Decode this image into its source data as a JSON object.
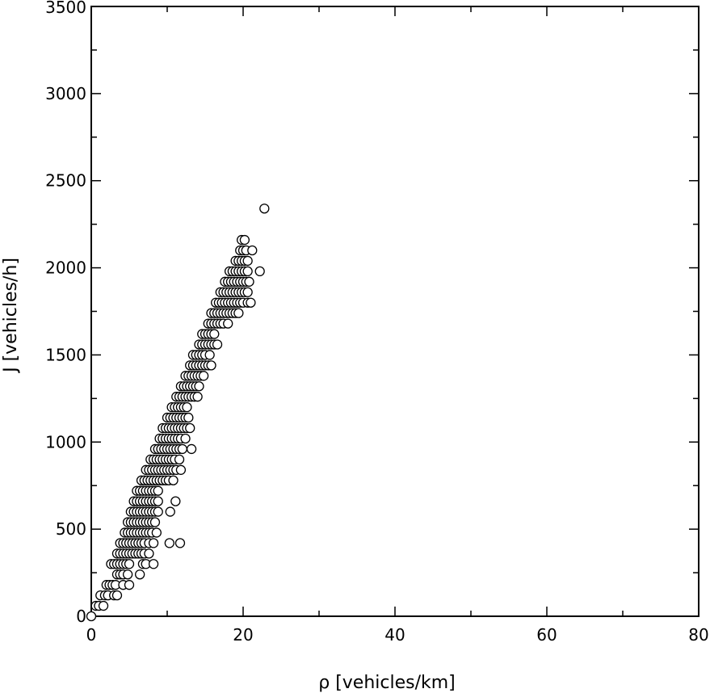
{
  "chart_data": {
    "type": "scatter",
    "title": "",
    "xlabel": "ρ [vehicles/km]",
    "ylabel": "J [vehicles/h]",
    "xlim": [
      0,
      80
    ],
    "ylim": [
      0,
      3500
    ],
    "xticks": [
      0,
      20,
      40,
      60,
      80
    ],
    "xtick_labels": [
      "0",
      "20",
      "40",
      "60",
      "80"
    ],
    "yticks": [
      0,
      500,
      1000,
      1500,
      2000,
      2500,
      3000,
      3500
    ],
    "ytick_labels": [
      "0",
      "500",
      "1000",
      "1500",
      "2000",
      "2500",
      "3000",
      "3500"
    ],
    "grid": false,
    "marker": "open-circle",
    "series": [
      {
        "points": [
          [
            0,
            0
          ],
          [
            0.6,
            60
          ],
          [
            1.0,
            60
          ],
          [
            1.2,
            120
          ],
          [
            1.6,
            60
          ],
          [
            1.8,
            120
          ],
          [
            2.2,
            120
          ],
          [
            2.0,
            180
          ],
          [
            2.4,
            180
          ],
          [
            2.8,
            180
          ],
          [
            3.0,
            120
          ],
          [
            3.2,
            180
          ],
          [
            3.4,
            120
          ],
          [
            2.6,
            300
          ],
          [
            3.0,
            300
          ],
          [
            3.4,
            300
          ],
          [
            3.8,
            300
          ],
          [
            4.2,
            300
          ],
          [
            4.6,
            300
          ],
          [
            5.0,
            300
          ],
          [
            3.4,
            240
          ],
          [
            3.8,
            240
          ],
          [
            4.2,
            240
          ],
          [
            4.8,
            240
          ],
          [
            4.2,
            180
          ],
          [
            5.0,
            180
          ],
          [
            6.4,
            240
          ],
          [
            3.4,
            360
          ],
          [
            3.8,
            360
          ],
          [
            4.2,
            360
          ],
          [
            4.6,
            360
          ],
          [
            5.0,
            360
          ],
          [
            5.4,
            360
          ],
          [
            5.8,
            360
          ],
          [
            6.2,
            360
          ],
          [
            6.6,
            360
          ],
          [
            7.0,
            360
          ],
          [
            7.6,
            360
          ],
          [
            3.8,
            420
          ],
          [
            4.2,
            420
          ],
          [
            4.6,
            420
          ],
          [
            5.0,
            420
          ],
          [
            5.4,
            420
          ],
          [
            5.8,
            420
          ],
          [
            6.2,
            420
          ],
          [
            6.6,
            420
          ],
          [
            7.0,
            420
          ],
          [
            7.6,
            420
          ],
          [
            8.2,
            420
          ],
          [
            10.3,
            420
          ],
          [
            11.7,
            420
          ],
          [
            6.8,
            300
          ],
          [
            7.2,
            300
          ],
          [
            8.2,
            300
          ],
          [
            4.4,
            480
          ],
          [
            4.8,
            480
          ],
          [
            5.2,
            480
          ],
          [
            5.6,
            480
          ],
          [
            6.0,
            480
          ],
          [
            6.4,
            480
          ],
          [
            6.8,
            480
          ],
          [
            7.2,
            480
          ],
          [
            7.6,
            480
          ],
          [
            8.0,
            480
          ],
          [
            8.6,
            480
          ],
          [
            4.8,
            540
          ],
          [
            5.2,
            540
          ],
          [
            5.6,
            540
          ],
          [
            6.0,
            540
          ],
          [
            6.4,
            540
          ],
          [
            6.8,
            540
          ],
          [
            7.2,
            540
          ],
          [
            7.6,
            540
          ],
          [
            8.0,
            540
          ],
          [
            8.4,
            540
          ],
          [
            5.2,
            600
          ],
          [
            5.6,
            600
          ],
          [
            6.0,
            600
          ],
          [
            6.4,
            600
          ],
          [
            6.8,
            600
          ],
          [
            7.2,
            600
          ],
          [
            7.6,
            600
          ],
          [
            8.0,
            600
          ],
          [
            8.4,
            600
          ],
          [
            8.8,
            600
          ],
          [
            10.4,
            600
          ],
          [
            5.6,
            660
          ],
          [
            6.0,
            660
          ],
          [
            6.4,
            660
          ],
          [
            6.8,
            660
          ],
          [
            7.2,
            660
          ],
          [
            7.6,
            660
          ],
          [
            8.0,
            660
          ],
          [
            8.4,
            660
          ],
          [
            8.8,
            660
          ],
          [
            11.1,
            660
          ],
          [
            6.0,
            720
          ],
          [
            6.4,
            720
          ],
          [
            6.8,
            720
          ],
          [
            7.2,
            720
          ],
          [
            7.6,
            720
          ],
          [
            8.0,
            720
          ],
          [
            8.4,
            720
          ],
          [
            8.8,
            720
          ],
          [
            6.6,
            780
          ],
          [
            7.0,
            780
          ],
          [
            7.4,
            780
          ],
          [
            7.8,
            780
          ],
          [
            8.2,
            780
          ],
          [
            8.6,
            780
          ],
          [
            9.0,
            780
          ],
          [
            9.4,
            780
          ],
          [
            9.8,
            780
          ],
          [
            10.2,
            780
          ],
          [
            10.8,
            780
          ],
          [
            7.2,
            840
          ],
          [
            7.6,
            840
          ],
          [
            8.0,
            840
          ],
          [
            8.4,
            840
          ],
          [
            8.8,
            840
          ],
          [
            9.2,
            840
          ],
          [
            9.6,
            840
          ],
          [
            10.0,
            840
          ],
          [
            10.4,
            840
          ],
          [
            10.8,
            840
          ],
          [
            11.2,
            840
          ],
          [
            11.8,
            840
          ],
          [
            7.8,
            900
          ],
          [
            8.2,
            900
          ],
          [
            8.6,
            900
          ],
          [
            9.0,
            900
          ],
          [
            9.4,
            900
          ],
          [
            9.8,
            900
          ],
          [
            10.2,
            900
          ],
          [
            10.6,
            900
          ],
          [
            11.0,
            900
          ],
          [
            11.6,
            900
          ],
          [
            8.4,
            960
          ],
          [
            8.8,
            960
          ],
          [
            9.2,
            960
          ],
          [
            9.6,
            960
          ],
          [
            10.0,
            960
          ],
          [
            10.4,
            960
          ],
          [
            10.8,
            960
          ],
          [
            11.2,
            960
          ],
          [
            11.6,
            960
          ],
          [
            12.0,
            960
          ],
          [
            13.2,
            960
          ],
          [
            9.0,
            1020
          ],
          [
            9.4,
            1020
          ],
          [
            9.8,
            1020
          ],
          [
            10.2,
            1020
          ],
          [
            10.6,
            1020
          ],
          [
            11.0,
            1020
          ],
          [
            11.4,
            1020
          ],
          [
            11.8,
            1020
          ],
          [
            12.4,
            1020
          ],
          [
            9.4,
            1080
          ],
          [
            9.8,
            1080
          ],
          [
            10.2,
            1080
          ],
          [
            10.6,
            1080
          ],
          [
            11.0,
            1080
          ],
          [
            11.4,
            1080
          ],
          [
            11.8,
            1080
          ],
          [
            12.2,
            1080
          ],
          [
            12.6,
            1080
          ],
          [
            13.0,
            1080
          ],
          [
            10.0,
            1140
          ],
          [
            10.4,
            1140
          ],
          [
            10.8,
            1140
          ],
          [
            11.2,
            1140
          ],
          [
            11.6,
            1140
          ],
          [
            12.0,
            1140
          ],
          [
            12.4,
            1140
          ],
          [
            12.8,
            1140
          ],
          [
            10.6,
            1200
          ],
          [
            11.0,
            1200
          ],
          [
            11.4,
            1200
          ],
          [
            11.8,
            1200
          ],
          [
            12.2,
            1200
          ],
          [
            12.6,
            1200
          ],
          [
            11.2,
            1260
          ],
          [
            11.6,
            1260
          ],
          [
            12.0,
            1260
          ],
          [
            12.4,
            1260
          ],
          [
            12.8,
            1260
          ],
          [
            13.2,
            1260
          ],
          [
            13.6,
            1260
          ],
          [
            14.0,
            1260
          ],
          [
            11.8,
            1320
          ],
          [
            12.2,
            1320
          ],
          [
            12.6,
            1320
          ],
          [
            13.0,
            1320
          ],
          [
            13.4,
            1320
          ],
          [
            13.8,
            1320
          ],
          [
            14.2,
            1320
          ],
          [
            12.4,
            1380
          ],
          [
            12.8,
            1380
          ],
          [
            13.2,
            1380
          ],
          [
            13.6,
            1380
          ],
          [
            14.0,
            1380
          ],
          [
            14.4,
            1380
          ],
          [
            14.8,
            1380
          ],
          [
            13.0,
            1440
          ],
          [
            13.4,
            1440
          ],
          [
            13.8,
            1440
          ],
          [
            14.2,
            1440
          ],
          [
            14.6,
            1440
          ],
          [
            15.0,
            1440
          ],
          [
            15.4,
            1440
          ],
          [
            15.8,
            1440
          ],
          [
            13.4,
            1500
          ],
          [
            13.8,
            1500
          ],
          [
            14.2,
            1500
          ],
          [
            14.6,
            1500
          ],
          [
            15.0,
            1500
          ],
          [
            15.6,
            1500
          ],
          [
            14.2,
            1560
          ],
          [
            14.6,
            1560
          ],
          [
            15.0,
            1560
          ],
          [
            15.4,
            1560
          ],
          [
            15.8,
            1560
          ],
          [
            16.2,
            1560
          ],
          [
            16.6,
            1560
          ],
          [
            14.6,
            1620
          ],
          [
            15.0,
            1620
          ],
          [
            15.4,
            1620
          ],
          [
            15.8,
            1620
          ],
          [
            16.2,
            1620
          ],
          [
            15.4,
            1680
          ],
          [
            15.8,
            1680
          ],
          [
            16.2,
            1680
          ],
          [
            16.6,
            1680
          ],
          [
            17.0,
            1680
          ],
          [
            17.4,
            1680
          ],
          [
            18.0,
            1680
          ],
          [
            15.8,
            1740
          ],
          [
            16.2,
            1740
          ],
          [
            16.6,
            1740
          ],
          [
            17.0,
            1740
          ],
          [
            17.4,
            1740
          ],
          [
            17.8,
            1740
          ],
          [
            18.2,
            1740
          ],
          [
            18.6,
            1740
          ],
          [
            19.0,
            1740
          ],
          [
            19.4,
            1740
          ],
          [
            16.4,
            1800
          ],
          [
            16.8,
            1800
          ],
          [
            17.2,
            1800
          ],
          [
            17.6,
            1800
          ],
          [
            18.0,
            1800
          ],
          [
            18.4,
            1800
          ],
          [
            18.8,
            1800
          ],
          [
            19.2,
            1800
          ],
          [
            19.6,
            1800
          ],
          [
            20.0,
            1800
          ],
          [
            20.6,
            1800
          ],
          [
            21.0,
            1800
          ],
          [
            17.0,
            1860
          ],
          [
            17.4,
            1860
          ],
          [
            17.8,
            1860
          ],
          [
            18.2,
            1860
          ],
          [
            18.6,
            1860
          ],
          [
            19.0,
            1860
          ],
          [
            19.4,
            1860
          ],
          [
            19.8,
            1860
          ],
          [
            20.2,
            1860
          ],
          [
            20.6,
            1860
          ],
          [
            17.6,
            1920
          ],
          [
            18.0,
            1920
          ],
          [
            18.4,
            1920
          ],
          [
            18.8,
            1920
          ],
          [
            19.2,
            1920
          ],
          [
            19.6,
            1920
          ],
          [
            20.0,
            1920
          ],
          [
            20.4,
            1920
          ],
          [
            20.8,
            1920
          ],
          [
            18.2,
            1980
          ],
          [
            18.6,
            1980
          ],
          [
            19.0,
            1980
          ],
          [
            19.4,
            1980
          ],
          [
            19.8,
            1980
          ],
          [
            20.2,
            1980
          ],
          [
            20.6,
            1980
          ],
          [
            22.2,
            1980
          ],
          [
            19.0,
            2040
          ],
          [
            19.4,
            2040
          ],
          [
            19.8,
            2040
          ],
          [
            20.2,
            2040
          ],
          [
            20.6,
            2040
          ],
          [
            19.6,
            2100
          ],
          [
            20.0,
            2100
          ],
          [
            20.4,
            2100
          ],
          [
            21.2,
            2100
          ],
          [
            19.8,
            2160
          ],
          [
            20.2,
            2160
          ],
          [
            22.8,
            2340
          ]
        ]
      }
    ]
  }
}
